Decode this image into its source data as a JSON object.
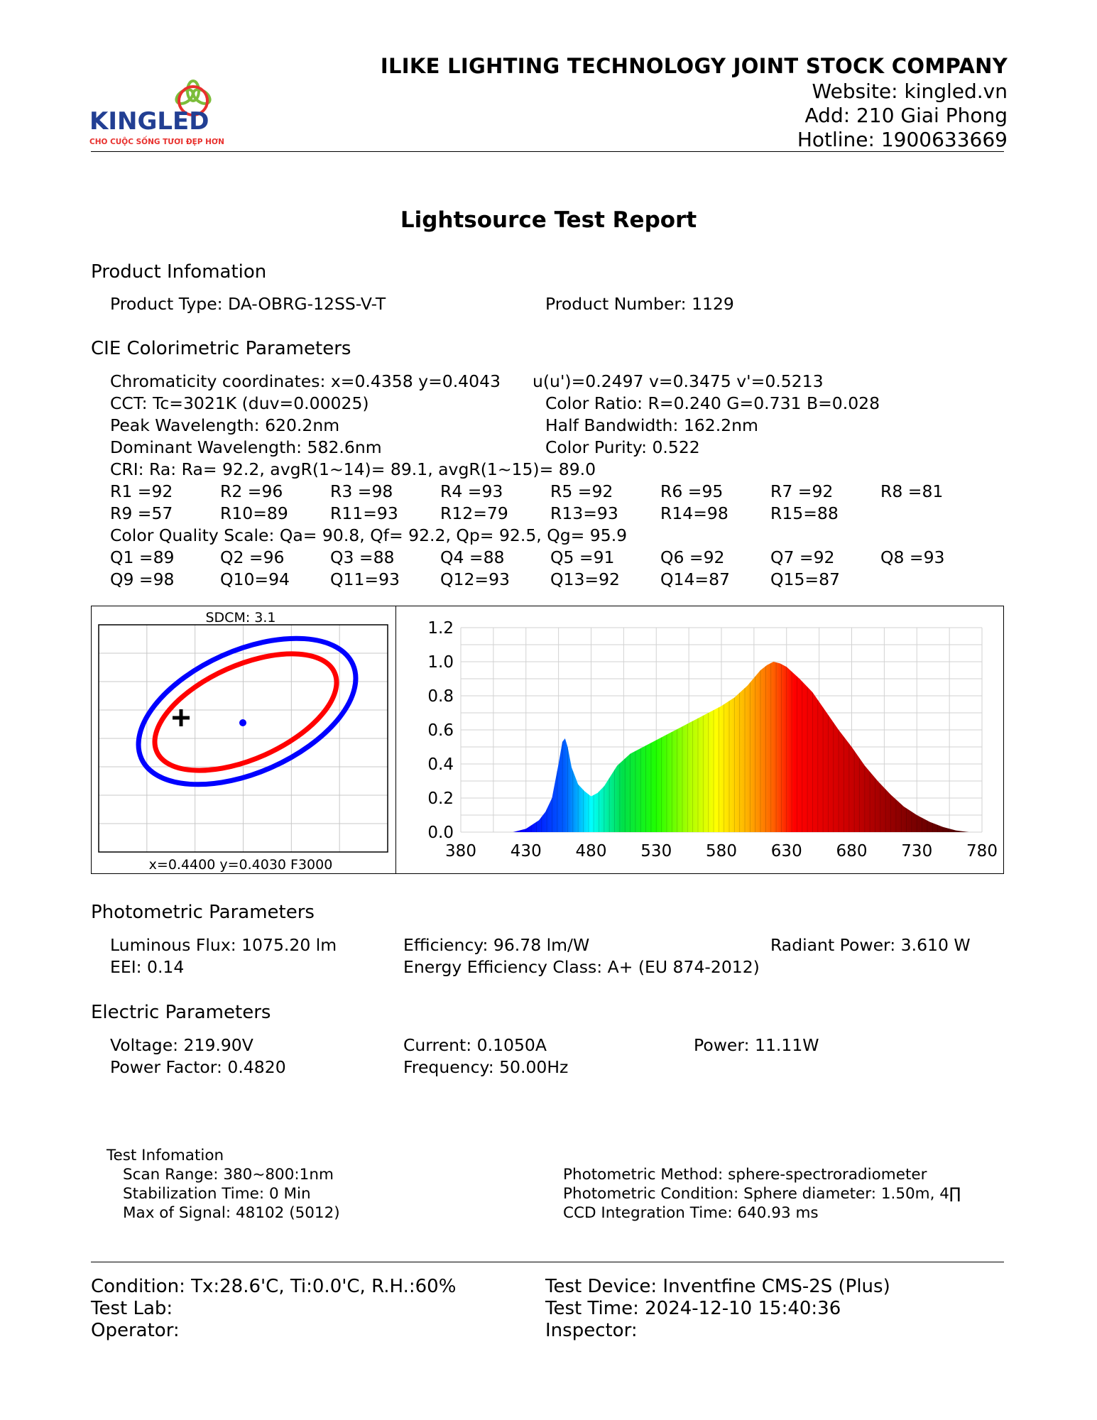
{
  "header": {
    "logo_text": "KINGLED",
    "logo_tagline": "CHO CUỘC SỐNG TƯƠI ĐẸP HƠN",
    "company_name": "ILIKE LIGHTING TECHNOLOGY JOINT STOCK COMPANY",
    "website": "Website: kingled.vn",
    "address": "Add: 210 Giai Phong",
    "hotline": "Hotline: 1900633669"
  },
  "title": "Lightsource Test Report",
  "product": {
    "heading": "Product Infomation",
    "type": "Product Type: DA-OBRG-12SS-V-T",
    "number": "Product Number: 1129"
  },
  "cie": {
    "heading": "CIE Colorimetric Parameters",
    "chromaticity": "Chromaticity coordinates: x=0.4358 y=0.4043",
    "uv": "u(u')=0.2497 v=0.3475 v'=0.5213",
    "cct": "CCT: Tc=3021K (duv=0.00025)",
    "color_ratio": "Color Ratio: R=0.240  G=0.731  B=0.028",
    "peak": "Peak Wavelength: 620.2nm",
    "half_bandwidth": "Half Bandwidth: 162.2nm",
    "dominant": "Dominant Wavelength: 582.6nm",
    "purity": "Color Purity: 0.522",
    "cri": "CRI: Ra: Ra= 92.2, avgR(1~14)= 89.1, avgR(1~15)= 89.0",
    "r_row1": [
      "R1 =92",
      "R2 =96",
      "R3 =98",
      "R4 =93",
      "R5 =92",
      "R6 =95",
      "R7 =92",
      "R8 =81"
    ],
    "r_row2": [
      "R9 =57",
      "R10=89",
      "R11=93",
      "R12=79",
      "R13=93",
      "R14=98",
      "R15=88"
    ],
    "cqs": "Color Quality Scale: Qa= 90.8, Qf= 92.2, Qp= 92.5, Qg= 95.9",
    "q_row1": [
      "Q1 =89",
      "Q2 =96",
      "Q3 =88",
      "Q4 =88",
      "Q5 =91",
      "Q6 =92",
      "Q7 =92",
      "Q8 =93"
    ],
    "q_row2": [
      "Q9 =98",
      "Q10=94",
      "Q11=93",
      "Q12=93",
      "Q13=92",
      "Q14=87",
      "Q15=87"
    ]
  },
  "sdcm_plot": {
    "top_label": "SDCM:   3.1",
    "bottom_label": "x=0.4400 y=0.4030 F3000",
    "colors": {
      "outer": "#0000ff",
      "inner": "#ff0000",
      "measured_point": "#0000ff",
      "target": "#000000"
    }
  },
  "chart_data": {
    "type": "area",
    "title": "",
    "xlabel": "",
    "ylabel": "",
    "xlim": [
      380,
      780
    ],
    "ylim": [
      0,
      1.2
    ],
    "x_ticks": [
      "380",
      "430",
      "480",
      "530",
      "580",
      "630",
      "680",
      "730",
      "780"
    ],
    "y_ticks": [
      "1.2",
      "1.0",
      "0.8",
      "0.6",
      "0.4",
      "0.2",
      "0.0"
    ],
    "grid": true,
    "series": [
      {
        "x": [
          380,
          410,
          420,
          430,
          440,
          445,
          450,
          455,
          458,
          460,
          462,
          465,
          470,
          475,
          480,
          485,
          490,
          500,
          510,
          520,
          530,
          540,
          550,
          560,
          570,
          580,
          590,
          600,
          610,
          615,
          620,
          625,
          630,
          640,
          650,
          660,
          670,
          680,
          690,
          700,
          710,
          720,
          730,
          740,
          750,
          760,
          770,
          780
        ],
        "values": [
          0.0,
          0.0,
          0.0,
          0.02,
          0.07,
          0.12,
          0.2,
          0.4,
          0.53,
          0.55,
          0.5,
          0.38,
          0.28,
          0.24,
          0.21,
          0.23,
          0.27,
          0.39,
          0.46,
          0.5,
          0.54,
          0.58,
          0.62,
          0.66,
          0.7,
          0.74,
          0.79,
          0.86,
          0.95,
          0.98,
          1.0,
          0.99,
          0.97,
          0.9,
          0.82,
          0.71,
          0.6,
          0.5,
          0.39,
          0.3,
          0.22,
          0.15,
          0.1,
          0.06,
          0.03,
          0.01,
          0.0,
          0.0
        ]
      }
    ]
  },
  "photometric": {
    "heading": "Photometric Parameters",
    "flux": "Luminous Flux: 1075.20 lm",
    "efficiency": "Efficiency: 96.78 lm/W",
    "radiant": "Radiant Power: 3.610 W",
    "eei": "EEI:  0.14",
    "energy_class": "Energy Efficiency Class: A+ (EU 874-2012)"
  },
  "electric": {
    "heading": "Electric Parameters",
    "voltage": "Voltage: 219.90V",
    "current": "Current: 0.1050A",
    "power": "Power: 11.11W",
    "pf": "Power Factor: 0.4820",
    "frequency": "Frequency: 50.00Hz"
  },
  "test_info": {
    "heading": "Test Infomation",
    "scan_range": "Scan Range: 380~800:1nm",
    "stabilization": "Stabilization Time: 0 Min",
    "max_signal": "Max of Signal: 48102 (5012)",
    "method": "Photometric Method: sphere-spectroradiometer",
    "condition": "Photometric Condition: Sphere diameter: 1.50m, 4∏",
    "ccd": "CCD Integration Time: 640.93 ms"
  },
  "footer": {
    "condition": "Condition: Tx:28.6'C, Ti:0.0'C, R.H.:60%",
    "device": "Test Device: Inventfine CMS-2S (Plus)",
    "lab": "Test Lab:",
    "time": "Test Time: 2024-12-10 15:40:36",
    "operator": "Operator:",
    "inspector": "Inspector:"
  }
}
